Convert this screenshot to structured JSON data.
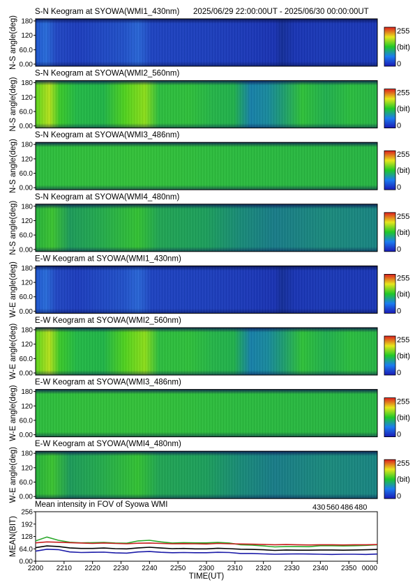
{
  "header": {
    "time_range": "2025/06/29 22:00:00UT  -  2025/06/30 00:00:00UT"
  },
  "colorbar": {
    "max_label": "255",
    "unit_label": "(bit)",
    "min_label": "0"
  },
  "keograms": [
    {
      "title": "S-N Keogram at SYOWA(WMI1_430nm)",
      "ylabel": "N-S angle(deg)",
      "yticks": [
        "180",
        "120",
        "60.0",
        "0.00"
      ],
      "palette": "blue"
    },
    {
      "title": "S-N Keogram at SYOWA(WMI2_560nm)",
      "ylabel": "N-S angle(deg)",
      "yticks": [
        "180",
        "120",
        "60.0",
        "0.00"
      ],
      "palette": "green"
    },
    {
      "title": "S-N Keogram at SYOWA(WMI3_486nm)",
      "ylabel": "N-S angle(deg)",
      "yticks": [
        "180",
        "120",
        "60.0",
        "0.00"
      ],
      "palette": "flat"
    },
    {
      "title": "S-N Keogram at SYOWA(WMI4_480nm)",
      "ylabel": "N-S angle(deg)",
      "yticks": [
        "180",
        "120",
        "60.0",
        "0.00"
      ],
      "palette": "mixed"
    },
    {
      "title": "E-W Keogram at SYOWA(WMI1_430nm)",
      "ylabel": "W-E angle(deg)",
      "yticks": [
        "180",
        "120",
        "60.0",
        "0.00"
      ],
      "palette": "blue"
    },
    {
      "title": "E-W Keogram at SYOWA(WMI2_560nm)",
      "ylabel": "W-E angle(deg)",
      "yticks": [
        "180",
        "120",
        "60.0",
        "0.00"
      ],
      "palette": "green"
    },
    {
      "title": "E-W Keogram at SYOWA(WMI3_486nm)",
      "ylabel": "W-E angle(deg)",
      "yticks": [
        "180",
        "120",
        "60.0",
        "0.00"
      ],
      "palette": "flat"
    },
    {
      "title": "E-W Keogram at SYOWA(WMI4_480nm)",
      "ylabel": "W-E angle(deg)",
      "yticks": [
        "180",
        "120",
        "60.0",
        "0.00"
      ],
      "palette": "mixed"
    }
  ],
  "chart_data": {
    "type": "line",
    "title": "Mean intensity in FOV of Syowa WMI",
    "xlabel": "TIME(UT)",
    "ylabel": "MEAN(BIT)",
    "x_tick_labels": [
      "2200",
      "2210",
      "2220",
      "2230",
      "2240",
      "2250",
      "2300",
      "2310",
      "2320",
      "2330",
      "2340",
      "2350",
      "0000"
    ],
    "y_tick_labels": [
      "256",
      "192",
      "128",
      "64.0",
      "0.00"
    ],
    "xlim_minutes": [
      0,
      120
    ],
    "ylim": [
      0,
      256
    ],
    "x_minutes": [
      0,
      4,
      8,
      12,
      16,
      20,
      24,
      28,
      32,
      36,
      40,
      44,
      48,
      52,
      56,
      60,
      64,
      68,
      72,
      76,
      80,
      84,
      88,
      92,
      96,
      100,
      104,
      108,
      112,
      116,
      120
    ],
    "series": [
      {
        "name": "430",
        "color": "#1a1aa8",
        "values": [
          52,
          62,
          60,
          48,
          45,
          46,
          47,
          43,
          42,
          48,
          50,
          46,
          44,
          45,
          44,
          44,
          46,
          45,
          40,
          40,
          38,
          36,
          37,
          38,
          37,
          36,
          35,
          36,
          36,
          35,
          37
        ]
      },
      {
        "name": "560",
        "color": "#2aa82a",
        "values": [
          105,
          125,
          108,
          98,
          95,
          96,
          97,
          94,
          93,
          105,
          108,
          100,
          94,
          96,
          95,
          95,
          97,
          94,
          85,
          83,
          79,
          74,
          76,
          76,
          75,
          80,
          80,
          79,
          80,
          82,
          85
        ]
      },
      {
        "name": "486",
        "color": "#c81e1e",
        "values": [
          95,
          100,
          98,
          96,
          94,
          92,
          94,
          92,
          90,
          93,
          94,
          92,
          90,
          91,
          90,
          89,
          92,
          90,
          89,
          88,
          87,
          85,
          86,
          85,
          84,
          85,
          85,
          84,
          85,
          85,
          86
        ]
      },
      {
        "name": "480",
        "color": "#000000",
        "values": [
          70,
          79,
          76,
          69,
          66,
          66,
          68,
          65,
          64,
          69,
          72,
          68,
          65,
          66,
          64,
          64,
          67,
          65,
          62,
          61,
          59,
          56,
          58,
          57,
          57,
          58,
          58,
          57,
          58,
          59,
          61
        ]
      }
    ],
    "grid": false,
    "legend_position": "top-right"
  }
}
